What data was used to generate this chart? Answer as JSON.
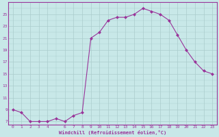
{
  "x": [
    0,
    1,
    2,
    3,
    4,
    5,
    6,
    7,
    8,
    9,
    10,
    11,
    12,
    13,
    14,
    15,
    16,
    17,
    18,
    19,
    20,
    21,
    22,
    23
  ],
  "y": [
    9,
    8.5,
    7,
    7,
    7,
    7.5,
    7,
    8,
    8.5,
    21,
    22,
    24,
    24.5,
    24.5,
    25,
    26,
    25.5,
    25,
    24,
    21.5,
    19,
    17,
    15.5,
    15
  ],
  "line_color": "#993399",
  "marker_color": "#993399",
  "bg_color": "#c8e8e8",
  "grid_color": "#aacccc",
  "xlabel": "Windchill (Refroidissement éolien,°C)",
  "xlabel_color": "#993399",
  "ytick_labels": [
    "7",
    "9",
    "11",
    "13",
    "15",
    "17",
    "19",
    "21",
    "23",
    "25"
  ],
  "ytick_values": [
    7,
    9,
    11,
    13,
    15,
    17,
    19,
    21,
    23,
    25
  ],
  "ylim": [
    6.5,
    27.0
  ],
  "xlim": [
    -0.5,
    23.5
  ],
  "xtick_values": [
    0,
    1,
    2,
    3,
    4,
    6,
    7,
    8,
    9,
    10,
    11,
    12,
    13,
    14,
    15,
    16,
    17,
    18,
    19,
    20,
    21,
    22,
    23
  ],
  "xtick_labels": [
    "0",
    "1",
    "2",
    "3",
    "4",
    "6",
    "7",
    "8",
    "9",
    "10",
    "11",
    "12",
    "13",
    "14",
    "15",
    "16",
    "17",
    "18",
    "19",
    "20",
    "21",
    "22",
    "23"
  ]
}
